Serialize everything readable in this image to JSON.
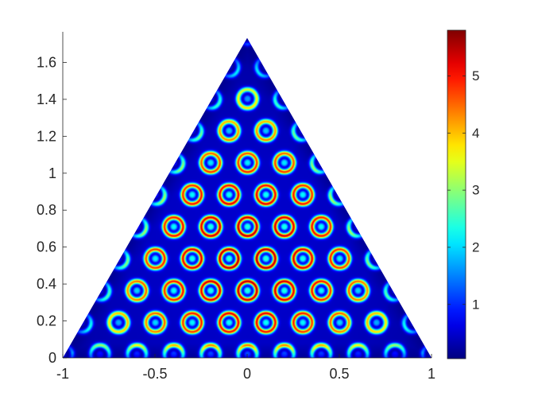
{
  "chart_data": {
    "type": "heatmap",
    "title": "",
    "xlabel": "",
    "ylabel": "",
    "xlim": [
      -1,
      1
    ],
    "ylim": [
      0,
      1.7320508
    ],
    "xticks": [
      -1,
      -0.5,
      0,
      0.5,
      1
    ],
    "xtick_labels": [
      "-1",
      "-0.5",
      "0",
      "0.5",
      "1"
    ],
    "yticks": [
      0,
      0.2,
      0.4,
      0.6,
      0.8,
      1,
      1.2,
      1.4,
      1.6
    ],
    "ytick_labels": [
      "0",
      "0.2",
      "0.4",
      "0.6",
      "0.8",
      "1",
      "1.2",
      "1.4",
      "1.6"
    ],
    "domain": {
      "shape": "equilateral triangle",
      "vertices": [
        [
          -1,
          0
        ],
        [
          1,
          0
        ],
        [
          0,
          1.7320508
        ]
      ]
    },
    "field": {
      "description": "hexagonal ring pattern on a triangular lattice",
      "lattice_cells_per_side": 10,
      "value_range": [
        0.05,
        5.8
      ]
    },
    "colorbar": {
      "colormap": "jet",
      "range": [
        0.05,
        5.8
      ],
      "ticks": [
        1,
        2,
        3,
        4,
        5
      ],
      "tick_labels": [
        "1",
        "2",
        "3",
        "4",
        "5"
      ],
      "position": "right"
    },
    "grid": false,
    "legend": "none"
  }
}
